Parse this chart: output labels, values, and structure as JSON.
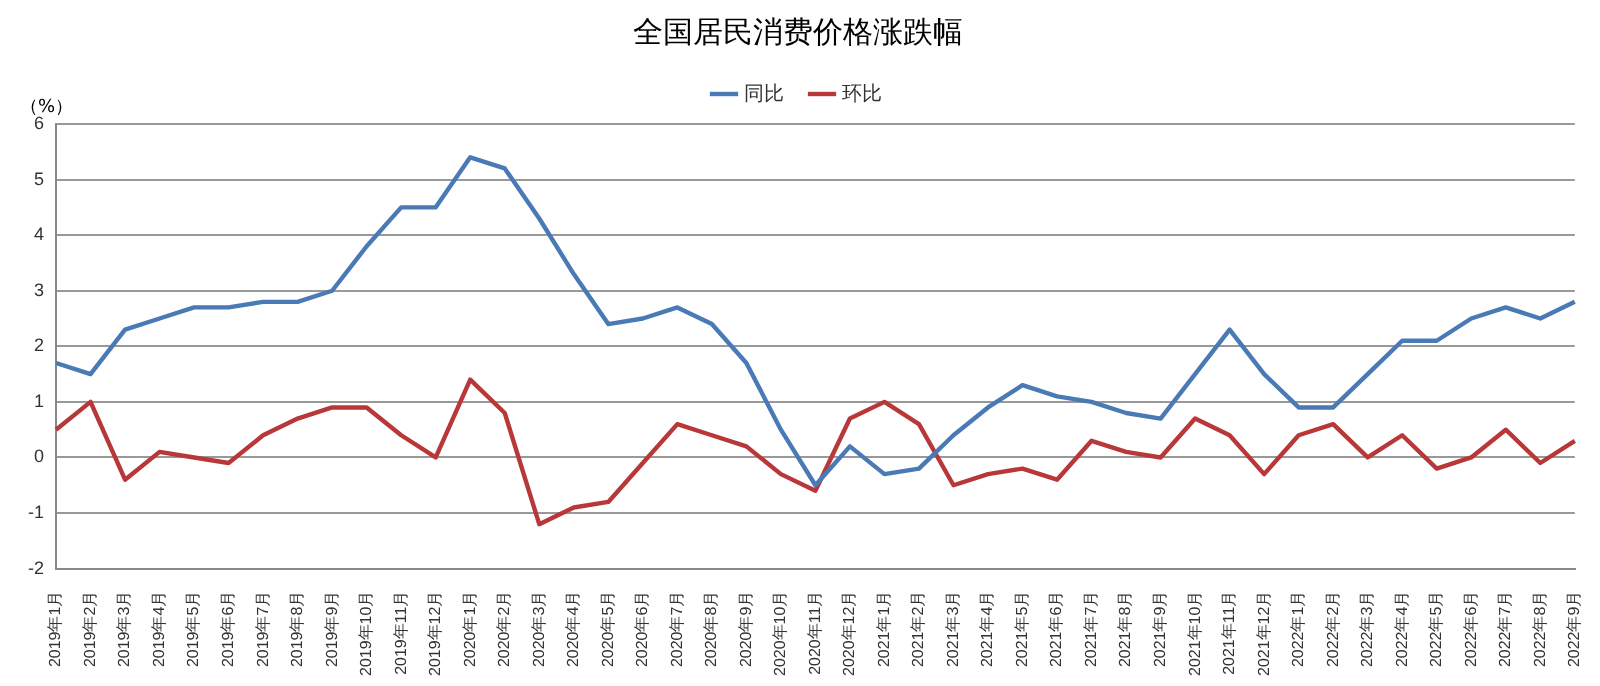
{
  "chart_data": {
    "type": "line",
    "title": "全国居民消费价格涨跌幅",
    "ylabel": "（%）",
    "categories": [
      "2019年1月",
      "2019年2月",
      "2019年3月",
      "2019年4月",
      "2019年5月",
      "2019年6月",
      "2019年7月",
      "2019年8月",
      "2019年9月",
      "2019年10月",
      "2019年11月",
      "2019年12月",
      "2020年1月",
      "2020年2月",
      "2020年3月",
      "2020年4月",
      "2020年5月",
      "2020年6月",
      "2020年7月",
      "2020年8月",
      "2020年9月",
      "2020年10月",
      "2020年11月",
      "2020年12月",
      "2021年1月",
      "2021年2月",
      "2021年3月",
      "2021年4月",
      "2021年5月",
      "2021年6月",
      "2021年7月",
      "2021年8月",
      "2021年9月",
      "2021年10月",
      "2021年11月",
      "2021年12月",
      "2022年1月",
      "2022年2月",
      "2022年3月",
      "2022年4月",
      "2022年5月",
      "2022年6月",
      "2022年7月",
      "2022年8月",
      "2022年9月"
    ],
    "series": [
      {
        "name": "同比",
        "color": "#4a7ab5",
        "values": [
          1.7,
          1.5,
          2.3,
          2.5,
          2.7,
          2.7,
          2.8,
          2.8,
          3.0,
          3.8,
          4.5,
          4.5,
          5.4,
          5.2,
          4.3,
          3.3,
          2.4,
          2.5,
          2.7,
          2.4,
          1.7,
          0.5,
          -0.5,
          0.2,
          -0.3,
          -0.2,
          0.4,
          0.9,
          1.3,
          1.1,
          1.0,
          0.8,
          0.7,
          1.5,
          2.3,
          1.5,
          0.9,
          0.9,
          1.5,
          2.1,
          2.1,
          2.5,
          2.7,
          2.5,
          2.8
        ]
      },
      {
        "name": "环比",
        "color": "#b8383a",
        "values": [
          0.5,
          1.0,
          -0.4,
          0.1,
          0.0,
          -0.1,
          0.4,
          0.7,
          0.9,
          0.9,
          0.4,
          0.0,
          1.4,
          0.8,
          -1.2,
          -0.9,
          -0.8,
          -0.1,
          0.6,
          0.4,
          0.2,
          -0.3,
          -0.6,
          0.7,
          1.0,
          0.6,
          -0.5,
          -0.3,
          -0.2,
          -0.4,
          0.3,
          0.1,
          0.0,
          0.7,
          0.4,
          -0.3,
          0.4,
          0.6,
          0.0,
          0.4,
          -0.2,
          0.0,
          0.5,
          -0.1,
          0.3
        ]
      }
    ],
    "ylim": [
      -2,
      6
    ],
    "yticks": [
      -2,
      -1,
      0,
      1,
      2,
      3,
      4,
      5,
      6
    ],
    "grid": "y",
    "legend": "top",
    "marker": "none",
    "line_style": "solid"
  }
}
